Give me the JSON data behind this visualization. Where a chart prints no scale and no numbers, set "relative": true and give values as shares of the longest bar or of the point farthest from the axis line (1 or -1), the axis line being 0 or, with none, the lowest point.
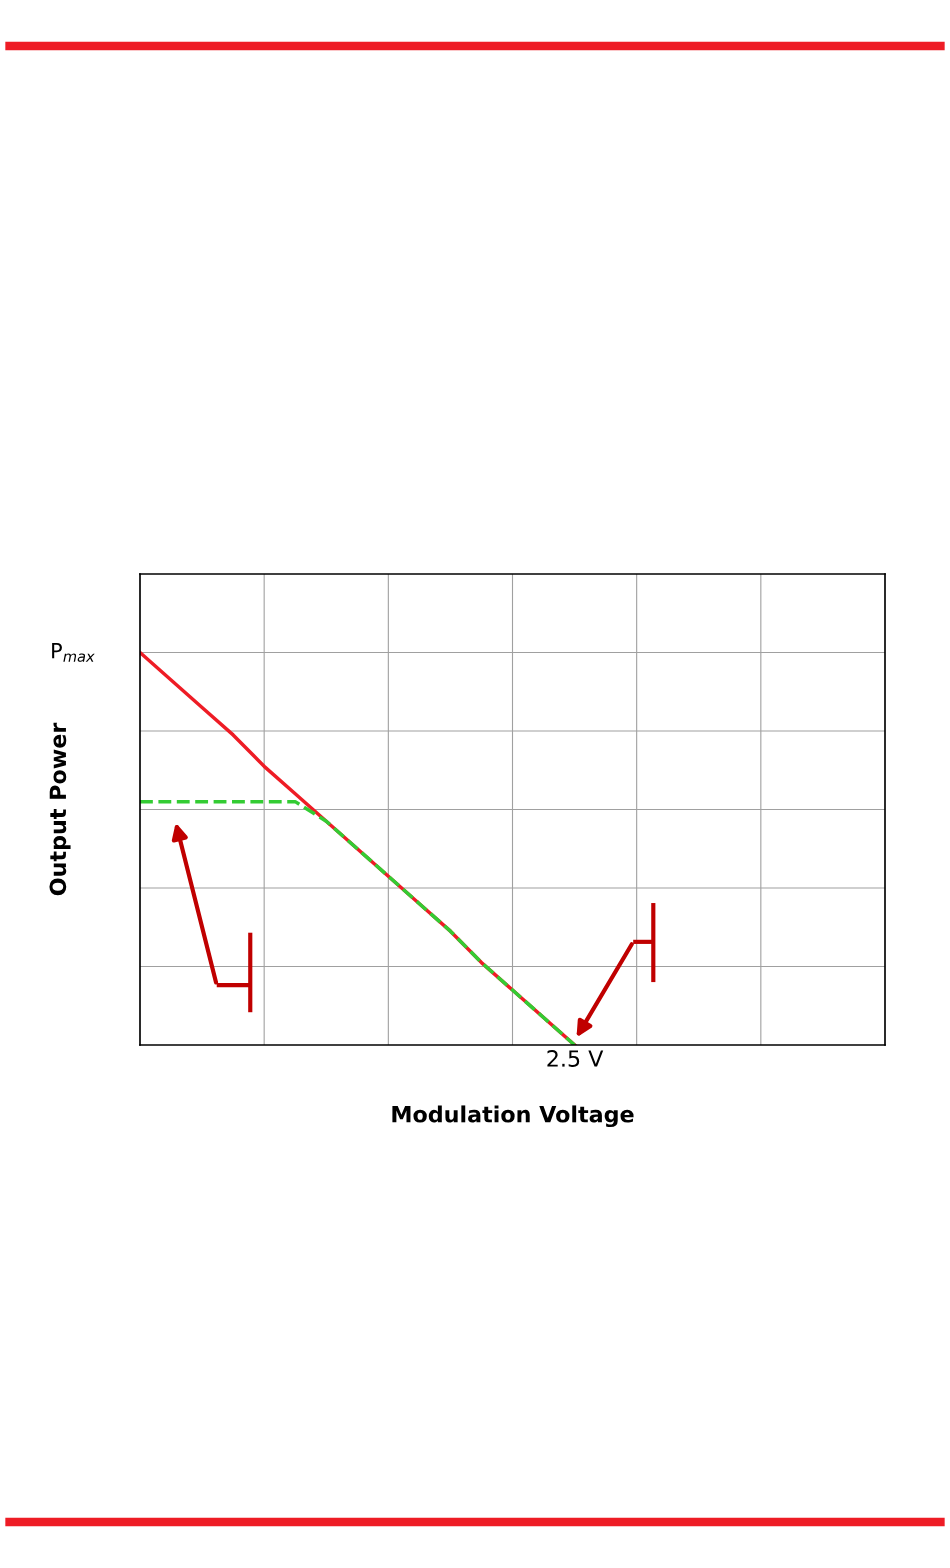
{
  "chart_data": {
    "type": "line",
    "xlabel": "Modulation Voltage",
    "ylabel": "Output Power",
    "relative": true,
    "grid": true,
    "annotations": [
      "P$_{max}$",
      "2.5 V"
    ],
    "categories": [
      null,
      null,
      null,
      null,
      null,
      null,
      null,
      null,
      null,
      null,
      null,
      null,
      null,
      null,
      null,
      null,
      null,
      null,
      null,
      null,
      null,
      null,
      null,
      null,
      null
    ],
    "series": [
      {
        "color": "#ee1c25",
        "line_style": "solid",
        "values": [
          1,
          0.93,
          0.86,
          0.79,
          0.71,
          0.64,
          0.57,
          0.5,
          0.43,
          0.36,
          0.29,
          0.21,
          0.14,
          0.07,
          0,
          null,
          null,
          null,
          null,
          null,
          null,
          null,
          null,
          null,
          null
        ]
      },
      {
        "color": "#33cc33",
        "line_style": "dashed",
        "values": [
          0.62,
          0.62,
          0.62,
          0.62,
          0.62,
          0.62,
          0.57,
          0.5,
          0.43,
          0.36,
          0.29,
          0.21,
          0.14,
          0.07,
          0,
          null,
          null,
          null,
          null,
          null,
          null,
          null,
          null,
          null,
          null
        ]
      }
    ]
  }
}
